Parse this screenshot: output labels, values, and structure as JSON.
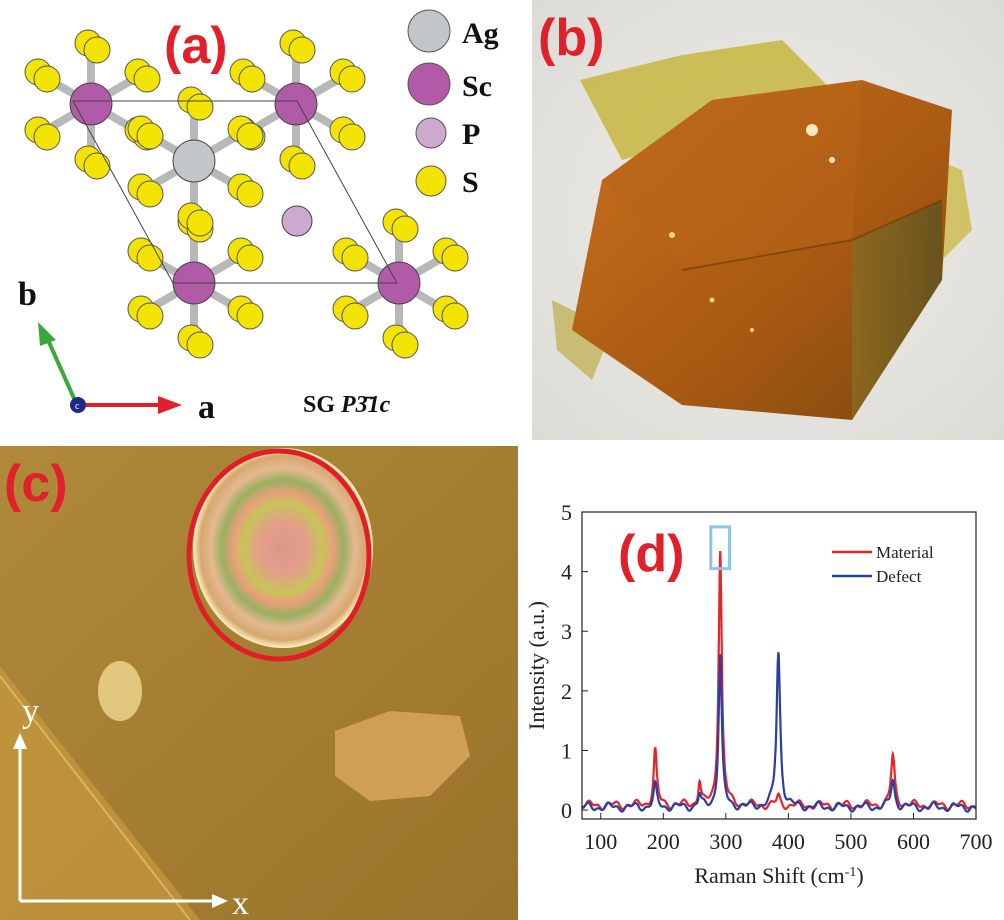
{
  "figure": {
    "panel_a": {
      "label": "(a)",
      "legend": [
        {
          "symbol": "Ag",
          "color": "#c3c6c8"
        },
        {
          "symbol": "Sc",
          "color": "#b05aa8"
        },
        {
          "symbol": "P",
          "color": "#cfa8d0"
        },
        {
          "symbol": "S",
          "color": "#f2e400"
        }
      ],
      "axis_b": "b",
      "axis_a": "a",
      "axis_c": "c",
      "space_group_prefix": "SG ",
      "space_group": "P3̄1c"
    },
    "panel_b": {
      "label": "(b)"
    },
    "panel_c": {
      "label": "(c)",
      "axis_y": "y",
      "axis_x": "x"
    },
    "panel_d": {
      "label": "(d)"
    }
  },
  "chart_data": {
    "type": "line",
    "xlabel": "Raman Shift (cm",
    "xlabel_sup": "-1",
    "xlabel_end": ")",
    "ylabel": "Intensity (a.u.)",
    "xlim": [
      70,
      700
    ],
    "ylim": [
      -0.15,
      5
    ],
    "xticks": [
      100,
      200,
      300,
      400,
      500,
      600,
      700
    ],
    "yticks": [
      0,
      1,
      2,
      3,
      4,
      5
    ],
    "legend_position": "top-right",
    "series": [
      {
        "name": "Material",
        "color": "#e8242b",
        "baseline": 0.08,
        "peaks": [
          [
            187,
            0.92,
            3
          ],
          [
            258,
            0.4,
            2.5
          ],
          [
            291,
            4.3,
            3
          ],
          [
            384,
            0.15,
            3
          ],
          [
            567,
            0.82,
            3.5
          ]
        ]
      },
      {
        "name": "Defect",
        "color": "#2b3fa0",
        "baseline": 0.05,
        "peaks": [
          [
            187,
            0.35,
            3
          ],
          [
            258,
            0.2,
            2.5
          ],
          [
            291,
            2.55,
            3
          ],
          [
            384,
            2.6,
            3.5
          ],
          [
            567,
            0.45,
            3.5
          ]
        ]
      }
    ],
    "highlight_box": {
      "x": [
        276,
        306
      ],
      "y": [
        4.05,
        4.75
      ],
      "color": "#8fc3e6"
    }
  }
}
